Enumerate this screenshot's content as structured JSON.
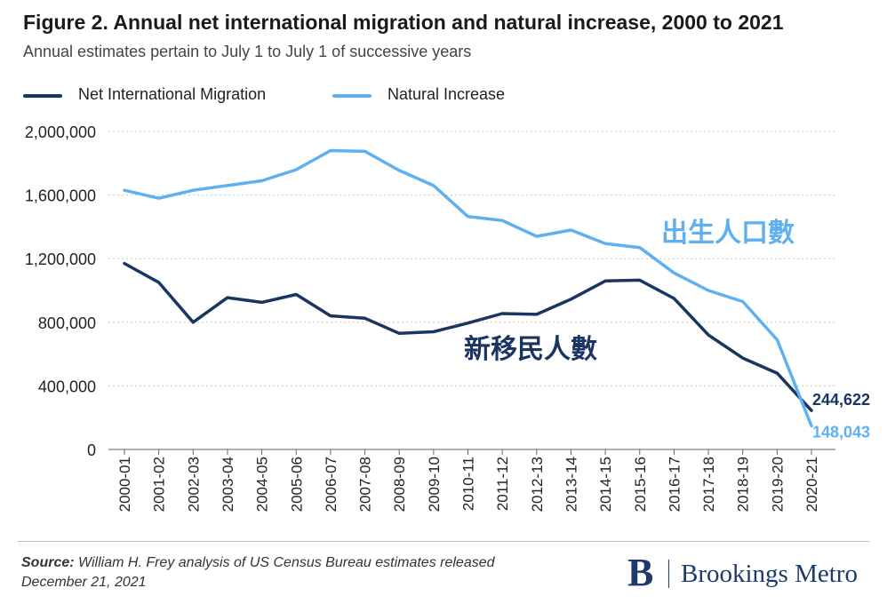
{
  "header": {
    "title": "Figure 2. Annual net international migration and natural increase, 2000 to 2021",
    "subtitle": "Annual estimates pertain to July 1 to July 1 of successive years"
  },
  "legend": {
    "items": [
      {
        "label": "Net International Migration",
        "color": "#1a3562"
      },
      {
        "label": "Natural Increase",
        "color": "#5fb0f0"
      }
    ]
  },
  "annotations": {
    "natural_increase_cn": "出生人口數",
    "migration_cn": "新移民人數",
    "end_value_migration": "244,622",
    "end_value_natural": "148,043"
  },
  "footer": {
    "source_label": "Source:",
    "source_text": "William H. Frey analysis of US Census Bureau estimates released December 21, 2021",
    "brand_mark": "B",
    "brand_name": "Brookings Metro"
  },
  "chart_data": {
    "type": "line",
    "categories": [
      "2000-01",
      "2001-02",
      "2002-03",
      "2003-04",
      "2004-05",
      "2005-06",
      "2006-07",
      "2007-08",
      "2008-09",
      "2009-10",
      "2010-11",
      "2011-12",
      "2012-13",
      "2013-14",
      "2014-15",
      "2015-16",
      "2016-17",
      "2017-18",
      "2018-19",
      "2019-20",
      "2020-21"
    ],
    "series": [
      {
        "name": "Net International Migration",
        "color": "#1a3562",
        "values": [
          1170000,
          1050000,
          800000,
          955000,
          925000,
          975000,
          840000,
          825000,
          730000,
          740000,
          795000,
          855000,
          850000,
          945000,
          1060000,
          1065000,
          950000,
          720000,
          575000,
          480000,
          244622
        ]
      },
      {
        "name": "Natural Increase",
        "color": "#5fb0f0",
        "values": [
          1630000,
          1580000,
          1630000,
          1660000,
          1690000,
          1760000,
          1880000,
          1875000,
          1755000,
          1660000,
          1465000,
          1440000,
          1340000,
          1380000,
          1295000,
          1270000,
          1110000,
          1000000,
          930000,
          690000,
          148043
        ]
      }
    ],
    "y_ticks": [
      "0",
      "400,000",
      "800,000",
      "1,200,000",
      "1,600,000",
      "2,000,000"
    ],
    "ylim": [
      0,
      2000000
    ],
    "grid": true,
    "legend_position": "top-left"
  }
}
